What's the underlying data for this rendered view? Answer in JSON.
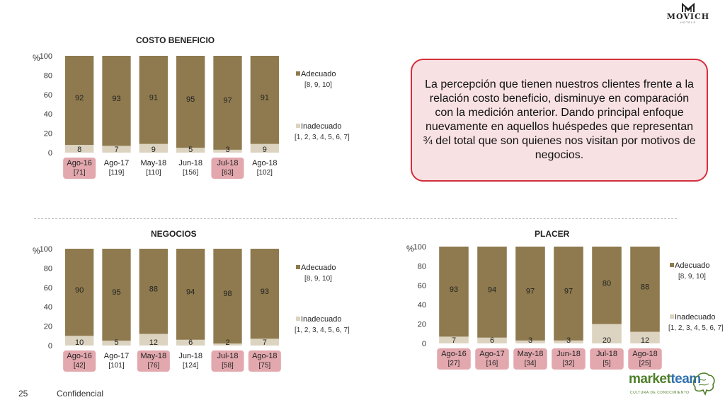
{
  "header": {
    "logo_name": "MOVICH",
    "logo_sub": "HOTELS"
  },
  "callout": {
    "text": "La percepción que tienen nuestros clientes frente a la relación costo beneficio, disminuye en comparación con la medición anterior. Dando principal enfoque nuevamente en aquellos huéspedes que representan ¾ del total que son quienes nos visitan por motivos de negocios."
  },
  "footer": {
    "page": "25",
    "confidential": "Confidencial",
    "brand_a": "market",
    "brand_b": "team",
    "brand_sub": "CULTURA DE CONOCIMIENTO"
  },
  "colors": {
    "adecuado": "#8e7a4e",
    "inadecuado": "#dcd3c0",
    "highlight": "#e2a8ae"
  },
  "chart_data": [
    {
      "type": "bar",
      "stacked": true,
      "title": "COSTO BENEFICIO",
      "ylabel": "%",
      "ylim": [
        0,
        100
      ],
      "yticks": [
        0,
        20,
        40,
        60,
        80,
        100
      ],
      "categories": [
        {
          "label": "Ago-16",
          "n": "[71]",
          "highlight": true
        },
        {
          "label": "Ago-17",
          "n": "[119]",
          "highlight": false
        },
        {
          "label": "May-18",
          "n": "[110]",
          "highlight": false
        },
        {
          "label": "Jun-18",
          "n": "[156]",
          "highlight": false
        },
        {
          "label": "Jul-18",
          "n": "[63]",
          "highlight": true
        },
        {
          "label": "Ago-18",
          "n": "[102]",
          "highlight": false
        }
      ],
      "series": [
        {
          "name": "Inadecuado",
          "scale": "[1, 2, 3, 4, 5, 6, 7]",
          "values": [
            8,
            7,
            9,
            5,
            3,
            9
          ]
        },
        {
          "name": "Adecuado",
          "scale": "[8, 9, 10]",
          "values": [
            92,
            93,
            91,
            95,
            97,
            91
          ]
        }
      ]
    },
    {
      "type": "bar",
      "stacked": true,
      "title": "NEGOCIOS",
      "ylabel": "%",
      "ylim": [
        0,
        100
      ],
      "yticks": [
        0,
        20,
        40,
        60,
        80,
        100
      ],
      "categories": [
        {
          "label": "Ago-16",
          "n": "[42]",
          "highlight": true
        },
        {
          "label": "Ago-17",
          "n": "[101]",
          "highlight": false
        },
        {
          "label": "May-18",
          "n": "[76]",
          "highlight": true
        },
        {
          "label": "Jun-18",
          "n": "[124]",
          "highlight": false
        },
        {
          "label": "Jul-18",
          "n": "[58]",
          "highlight": true
        },
        {
          "label": "Ago-18",
          "n": "[75]",
          "highlight": true
        }
      ],
      "series": [
        {
          "name": "Inadecuado",
          "scale": "[1, 2, 3, 4, 5, 6, 7]",
          "values": [
            10,
            5,
            12,
            6,
            2,
            7
          ]
        },
        {
          "name": "Adecuado",
          "scale": "[8, 9, 10]",
          "values": [
            90,
            95,
            88,
            94,
            98,
            93
          ]
        }
      ]
    },
    {
      "type": "bar",
      "stacked": true,
      "title": "PLACER",
      "ylabel": "%",
      "ylim": [
        0,
        100
      ],
      "yticks": [
        0,
        20,
        40,
        60,
        80,
        100
      ],
      "categories": [
        {
          "label": "Ago-16",
          "n": "[27]",
          "highlight": true
        },
        {
          "label": "Ago-17",
          "n": "[16]",
          "highlight": true
        },
        {
          "label": "May-18",
          "n": "[34]",
          "highlight": true
        },
        {
          "label": "Jun-18",
          "n": "[32]",
          "highlight": true
        },
        {
          "label": "Jul-18",
          "n": "[5]",
          "highlight": true
        },
        {
          "label": "Ago-18",
          "n": "[25]",
          "highlight": true
        }
      ],
      "series": [
        {
          "name": "Inadecuado",
          "scale": "[1, 2, 3, 4, 5, 6, 7]",
          "values": [
            7,
            6,
            3,
            3,
            20,
            12
          ]
        },
        {
          "name": "Adecuado",
          "scale": "[8, 9, 10]",
          "values": [
            93,
            94,
            97,
            97,
            80,
            88
          ]
        }
      ]
    }
  ]
}
